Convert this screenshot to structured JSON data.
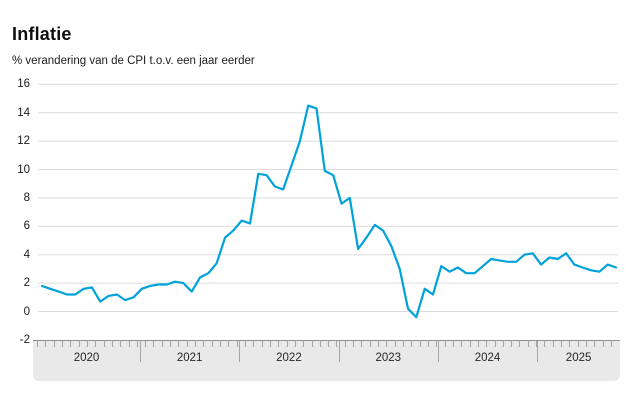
{
  "chart": {
    "title": "Inflatie",
    "subtitle": "% verandering van de CPI t.o.v. een jaar eerder",
    "colors": {
      "line": "#00a2d9",
      "gridline": "#dcdcdc",
      "axis_band_fill": "#e9e9e9",
      "axis_band_border": "#8f8f8f",
      "text": "#1a1a1a",
      "background": "#ffffff"
    },
    "chart_data": {
      "type": "line",
      "title": "Inflatie",
      "subtitle": "% verandering van de CPI t.o.v. een jaar eerder",
      "xlabel": "",
      "ylabel": "% verandering van de CPI t.o.v. een jaar eerder",
      "ylim": [
        -2,
        16
      ],
      "yticks": [
        -2,
        0,
        2,
        4,
        6,
        8,
        10,
        12,
        14,
        16
      ],
      "grid": true,
      "legend": false,
      "x": {
        "freq": "monthly",
        "start": "2020-01",
        "end": "2025-10"
      },
      "year_labels": [
        "2020",
        "2021",
        "2022",
        "2023",
        "2024",
        "2025"
      ],
      "series": [
        {
          "name": "Inflatie (CPI)",
          "color": "#00a2d9",
          "values": [
            1.8,
            1.6,
            1.4,
            1.2,
            1.2,
            1.6,
            1.7,
            0.7,
            1.1,
            1.2,
            0.8,
            1.0,
            1.6,
            1.8,
            1.9,
            1.9,
            2.1,
            2.0,
            1.4,
            2.4,
            2.7,
            3.4,
            5.2,
            5.7,
            6.4,
            6.2,
            9.7,
            9.6,
            8.8,
            8.6,
            10.3,
            12.0,
            14.5,
            14.3,
            9.9,
            9.6,
            7.6,
            8.0,
            4.4,
            5.2,
            6.1,
            5.7,
            4.6,
            3.0,
            0.2,
            -0.4,
            1.6,
            1.2,
            3.2,
            2.8,
            3.1,
            2.7,
            2.7,
            3.2,
            3.7,
            3.6,
            3.5,
            3.5,
            4.0,
            4.1,
            3.3,
            3.8,
            3.7,
            4.1,
            3.3,
            3.1,
            2.9,
            2.8,
            3.3,
            3.1
          ]
        }
      ]
    }
  }
}
